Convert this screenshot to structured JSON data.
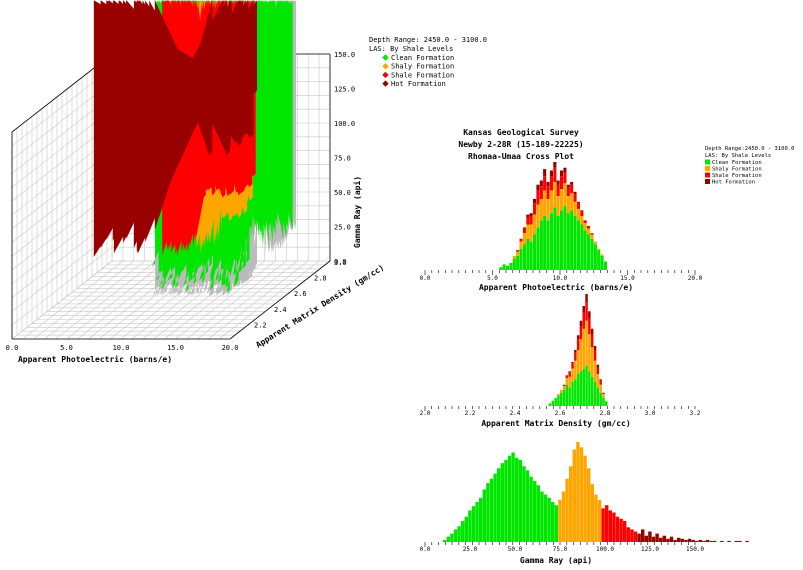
{
  "colors": {
    "clean": "#00e600",
    "shaly": "#ffa500",
    "shale": "#ff0000",
    "hot": "#990000",
    "projection": "#bbbbbb",
    "grid": "#c8c8c8",
    "frame": "#000000"
  },
  "header": {
    "org": "Kansas Geological Survey",
    "well": "Newby 2-28R (15-189-22225)",
    "plot": "Rhomaa-Umaa Cross Plot"
  },
  "legend": {
    "depth_range": "Depth Range:2450.0 - 3100.0",
    "depth_range_large": "Depth Range: 2450.0 - 3100.0",
    "las": "LAS: By Shale Levels",
    "items": [
      {
        "label": "Clean Formation",
        "color": "#00e600"
      },
      {
        "label": "Shaly Formation",
        "color": "#ffa500"
      },
      {
        "label": "Shale Formation",
        "color": "#ff0000"
      },
      {
        "label": "Hot Formation",
        "color": "#990000"
      }
    ]
  },
  "chart_data": [
    {
      "type": "scatter",
      "title": "Rhomaa-Umaa Cross Plot",
      "xlabel": "Apparent Photoelectric (barns/e)",
      "ylabel": "Apparent Matrix Density (gm/cc)",
      "zlabel": "Gamma Ray (api)",
      "x_ticks": [
        "0.0",
        "5.0",
        "10.0",
        "15.0",
        "20.0"
      ],
      "y_ticks": [
        "2.2",
        "2.4",
        "2.6",
        "2.8",
        "3.0"
      ],
      "z_ticks": [
        "0.0",
        "25.0",
        "50.0",
        "75.0",
        "100.0",
        "125.0",
        "150.0"
      ],
      "xlim": [
        0,
        20
      ],
      "ylim": [
        2.0,
        3.0
      ],
      "zlim": [
        0,
        150
      ],
      "series": [
        {
          "name": "Clean Formation",
          "pe_range": [
            8.0,
            15.0
          ],
          "rho_range": [
            2.55,
            2.8
          ],
          "gr_range": [
            0,
            45
          ]
        },
        {
          "name": "Shaly Formation",
          "pe_range": [
            9.5,
            14.5
          ],
          "rho_range": [
            2.7,
            2.85
          ],
          "gr_range": [
            45,
            58
          ]
        },
        {
          "name": "Shale Formation",
          "pe_range": [
            10.0,
            14.5
          ],
          "rho_range": [
            2.75,
            2.9
          ],
          "gr_range": [
            58,
            80
          ]
        },
        {
          "name": "Hot Formation",
          "pe_range": [
            11.0,
            14.5
          ],
          "rho_range": [
            2.8,
            2.95
          ],
          "gr_range": [
            80,
            125
          ]
        }
      ]
    },
    {
      "type": "bar",
      "stacked": true,
      "xlabel": "Apparent Photoelectric (barns/e)",
      "x_ticks": [
        "0.0",
        "5.0",
        "10.0",
        "15.0",
        "20.0"
      ],
      "xlim": [
        0,
        20
      ],
      "bin_start": 5.5,
      "bin_width": 0.25,
      "series": [
        {
          "name": "Clean Formation",
          "values": [
            2,
            4,
            3,
            5,
            8,
            10,
            15,
            18,
            22,
            20,
            25,
            30,
            35,
            38,
            35,
            40,
            44,
            38,
            42,
            45,
            40,
            42,
            38,
            35,
            32,
            28,
            25,
            22,
            18,
            14,
            10,
            6
          ]
        },
        {
          "name": "Shaly Formation",
          "values": [
            0,
            0,
            0,
            0,
            2,
            3,
            5,
            8,
            10,
            12,
            14,
            16,
            15,
            18,
            15,
            16,
            18,
            14,
            15,
            16,
            12,
            12,
            10,
            8,
            6,
            5,
            4,
            3,
            2,
            1,
            1,
            0
          ]
        },
        {
          "name": "Shale Formation",
          "values": [
            0,
            0,
            0,
            0,
            0,
            1,
            2,
            3,
            5,
            6,
            8,
            10,
            9,
            10,
            9,
            10,
            10,
            8,
            9,
            8,
            6,
            6,
            5,
            4,
            3,
            2,
            2,
            1,
            0,
            0,
            0,
            0
          ]
        },
        {
          "name": "Hot Formation",
          "values": [
            0,
            0,
            0,
            0,
            0,
            0,
            0,
            1,
            2,
            2,
            3,
            4,
            4,
            5,
            3,
            4,
            4,
            3,
            4,
            3,
            2,
            2,
            2,
            1,
            1,
            0,
            0,
            0,
            0,
            0,
            0,
            0
          ]
        }
      ]
    },
    {
      "type": "bar",
      "stacked": true,
      "xlabel": "Apparent Matrix Density (gm/cc)",
      "x_ticks": [
        "2.0",
        "2.2",
        "2.4",
        "2.6",
        "2.8",
        "3.0",
        "3.2"
      ],
      "xlim": [
        2.0,
        3.2
      ],
      "bin_start": 2.55,
      "bin_width": 0.0125,
      "series": [
        {
          "name": "Clean Formation",
          "values": [
            2,
            4,
            6,
            8,
            10,
            12,
            16,
            14,
            18,
            20,
            24,
            26,
            28,
            30,
            26,
            22,
            18,
            14,
            10,
            6,
            3
          ]
        },
        {
          "name": "Shaly Formation",
          "values": [
            0,
            0,
            0,
            1,
            2,
            3,
            5,
            8,
            10,
            14,
            18,
            24,
            30,
            34,
            28,
            22,
            16,
            10,
            6,
            3,
            1
          ]
        },
        {
          "name": "Shale Formation",
          "values": [
            0,
            0,
            0,
            0,
            0,
            1,
            2,
            3,
            4,
            6,
            8,
            10,
            12,
            14,
            12,
            10,
            8,
            5,
            3,
            1,
            0
          ]
        },
        {
          "name": "Hot Formation",
          "values": [
            0,
            0,
            0,
            0,
            0,
            0,
            0,
            1,
            1,
            2,
            3,
            4,
            5,
            6,
            5,
            4,
            3,
            2,
            1,
            0,
            0
          ]
        }
      ]
    },
    {
      "type": "bar",
      "xlabel": "Gamma Ray (api)",
      "x_ticks": [
        "0.0",
        "25.0",
        "50.0",
        "75.0",
        "100.0",
        "125.0",
        "150.0"
      ],
      "xlim": [
        0,
        150
      ],
      "bin_start": 10,
      "bin_width": 2,
      "series": [
        {
          "name": "Clean Formation",
          "values": [
            2,
            5,
            8,
            12,
            15,
            20,
            24,
            30,
            34,
            38,
            42,
            50,
            56,
            60,
            65,
            70,
            75,
            78,
            82,
            85,
            80,
            78,
            72,
            68,
            62,
            58,
            54,
            48,
            45,
            42,
            38,
            35
          ]
        },
        {
          "name": "Shaly Formation",
          "values": [
            40,
            48,
            60,
            72,
            88,
            95,
            90,
            82,
            70,
            55,
            45,
            40
          ]
        },
        {
          "name": "Shale Formation",
          "values": [
            32,
            35,
            30,
            28,
            24,
            22,
            20,
            14,
            12,
            10
          ]
        },
        {
          "name": "Hot Formation",
          "values": [
            8,
            12,
            6,
            10,
            5,
            8,
            4,
            6,
            3,
            5,
            2,
            4,
            3,
            2,
            3,
            2,
            1,
            2,
            1,
            2,
            1,
            1,
            0,
            1,
            0,
            1,
            0,
            1,
            1,
            0,
            1
          ]
        }
      ]
    }
  ]
}
